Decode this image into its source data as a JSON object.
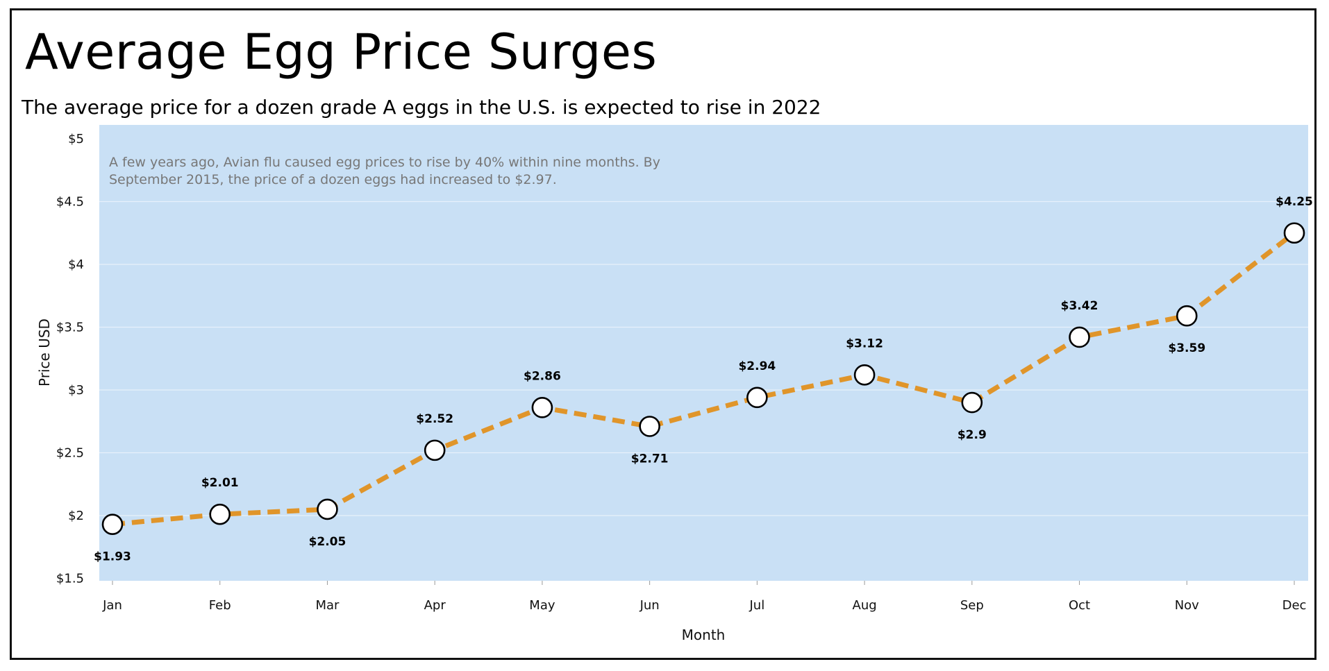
{
  "title": "Average Egg Price Surges",
  "subtitle": "The average price for a dozen grade A eggs in the U.S. is expected to rise in 2022",
  "colors": {
    "plot_background": "#c9e0f5",
    "line": "#e0952a",
    "marker_fill": "#ffffff",
    "marker_stroke": "#000000",
    "annotation": "#777777"
  },
  "chart_data": {
    "type": "line",
    "categories": [
      "Jan",
      "Feb",
      "Mar",
      "Apr",
      "May",
      "Jun",
      "Jul",
      "Aug",
      "Sep",
      "Oct",
      "Nov",
      "Dec"
    ],
    "values": [
      1.93,
      2.01,
      2.05,
      2.52,
      2.86,
      2.71,
      2.94,
      3.12,
      2.9,
      3.42,
      3.59,
      4.25
    ],
    "data_labels": [
      "$1.93",
      "$2.01",
      "$2.05",
      "$2.52",
      "$2.86",
      "$2.71",
      "$2.94",
      "$3.12",
      "$2.9",
      "$3.42",
      "$3.59",
      "$4.25"
    ],
    "data_label_placement": [
      "below",
      "above",
      "below",
      "above",
      "above",
      "below",
      "above",
      "above",
      "below",
      "above",
      "below",
      "above"
    ],
    "line_style": "dashed",
    "xlabel": "Month",
    "ylabel": "Price USD",
    "ylim": [
      1.5,
      5
    ],
    "yticks": [
      1.5,
      2,
      2.5,
      3,
      3.5,
      4,
      4.5,
      5
    ],
    "ytick_labels": [
      "$1.5",
      "$2",
      "$2.5",
      "$3",
      "$3.5",
      "$4",
      "$4.5",
      "$5"
    ],
    "grid": true,
    "annotation": [
      "A few years ago, Avian flu caused egg prices to rise by 40% within nine months. By",
      "September 2015, the price of a dozen eggs had increased to $2.97."
    ]
  }
}
